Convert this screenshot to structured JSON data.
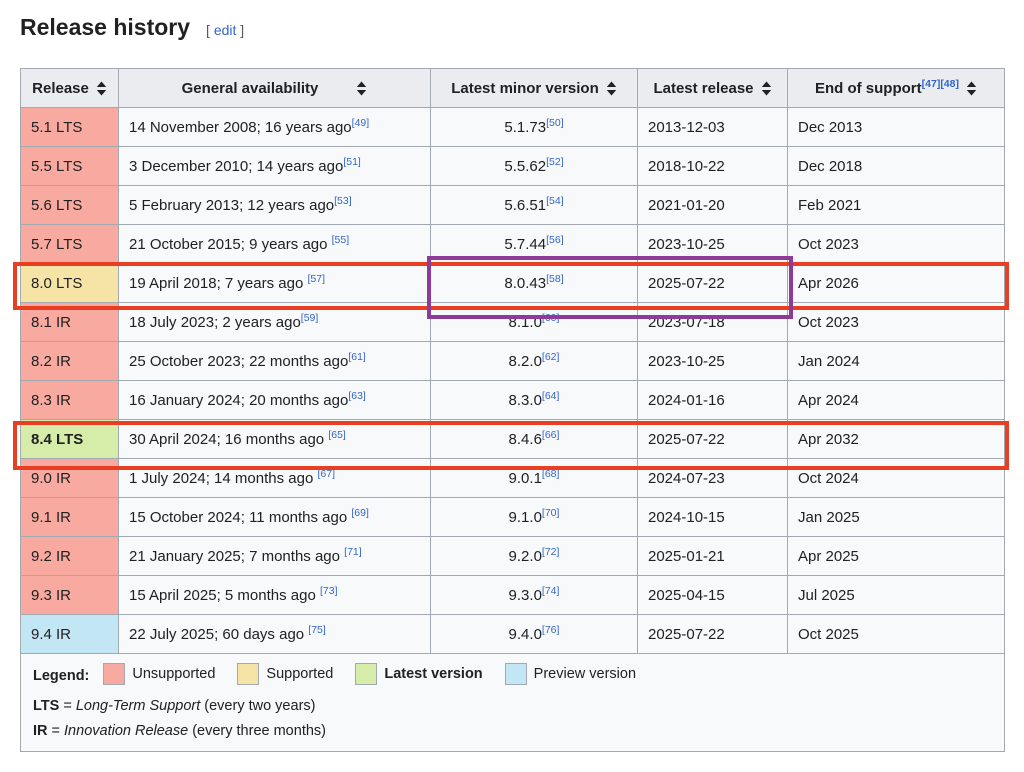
{
  "page": {
    "title": "Release history",
    "edit": {
      "open": "[ ",
      "label": "edit",
      "close": " ]"
    }
  },
  "table": {
    "headers": [
      {
        "label": "Release"
      },
      {
        "label": "General availability"
      },
      {
        "label": "Latest minor version"
      },
      {
        "label": "Latest release"
      },
      {
        "label": "End of support",
        "refs": "[47][48]"
      }
    ],
    "status_colors": {
      "unsupported": "#f8a9a0",
      "supported": "#f6e3a6",
      "latest": "#d5eda8",
      "preview": "#c2e6f4"
    },
    "rows": [
      {
        "release": "5.1 LTS",
        "status": "unsupported",
        "ga": "14 November 2008; 16 years ago",
        "ga_ref": "[49]",
        "minor": "5.1.73",
        "minor_ref": "[50]",
        "latest_release": "2013-12-03",
        "eos": "Dec 2013"
      },
      {
        "release": "5.5 LTS",
        "status": "unsupported",
        "ga": "3 December 2010; 14 years ago",
        "ga_ref": "[51]",
        "minor": "5.5.62",
        "minor_ref": "[52]",
        "latest_release": "2018-10-22",
        "eos": "Dec 2018"
      },
      {
        "release": "5.6 LTS",
        "status": "unsupported",
        "ga": "5 February 2013; 12 years ago",
        "ga_ref": "[53]",
        "minor": "5.6.51",
        "minor_ref": "[54]",
        "latest_release": "2021-01-20",
        "eos": "Feb 2021"
      },
      {
        "release": "5.7 LTS",
        "status": "unsupported",
        "ga": "21 October 2015; 9 years ago ",
        "ga_ref": "[55]",
        "minor": "5.7.44",
        "minor_ref": "[56]",
        "latest_release": "2023-10-25",
        "eos": "Oct 2023"
      },
      {
        "release": "8.0 LTS",
        "status": "supported",
        "ga": "19 April 2018; 7 years ago ",
        "ga_ref": "[57]",
        "minor": "8.0.43",
        "minor_ref": "[58]",
        "latest_release": "2025-07-22",
        "eos": "Apr 2026"
      },
      {
        "release": "8.1 IR",
        "status": "unsupported",
        "ga": "18 July 2023; 2 years ago",
        "ga_ref": "[59]",
        "minor": "8.1.0",
        "minor_ref": "[60]",
        "latest_release": "2023-07-18",
        "eos": "Oct 2023"
      },
      {
        "release": "8.2 IR",
        "status": "unsupported",
        "ga": "25 October 2023; 22 months ago",
        "ga_ref": "[61]",
        "minor": "8.2.0",
        "minor_ref": "[62]",
        "latest_release": "2023-10-25",
        "eos": "Jan 2024"
      },
      {
        "release": "8.3 IR",
        "status": "unsupported",
        "ga": "16 January 2024; 20 months ago",
        "ga_ref": "[63]",
        "minor": "8.3.0",
        "minor_ref": "[64]",
        "latest_release": "2024-01-16",
        "eos": "Apr 2024"
      },
      {
        "release": "8.4 LTS",
        "status": "latest",
        "bold": true,
        "ga": "30 April 2024; 16 months ago ",
        "ga_ref": "[65]",
        "minor": "8.4.6",
        "minor_ref": "[66]",
        "latest_release": "2025-07-22",
        "eos": "Apr 2032"
      },
      {
        "release": "9.0 IR",
        "status": "unsupported",
        "ga": "1 July 2024; 14 months ago ",
        "ga_ref": "[67]",
        "minor": "9.0.1",
        "minor_ref": "[68]",
        "latest_release": "2024-07-23",
        "eos": "Oct 2024"
      },
      {
        "release": "9.1 IR",
        "status": "unsupported",
        "ga": "15 October 2024; 11 months ago ",
        "ga_ref": "[69]",
        "minor": "9.1.0",
        "minor_ref": "[70]",
        "latest_release": "2024-10-15",
        "eos": "Jan 2025"
      },
      {
        "release": "9.2 IR",
        "status": "unsupported",
        "ga": "21 January 2025; 7 months ago ",
        "ga_ref": "[71]",
        "minor": "9.2.0",
        "minor_ref": "[72]",
        "latest_release": "2025-01-21",
        "eos": "Apr 2025"
      },
      {
        "release": "9.3 IR",
        "status": "unsupported",
        "ga": "15 April 2025; 5 months ago ",
        "ga_ref": "[73]",
        "minor": "9.3.0",
        "minor_ref": "[74]",
        "latest_release": "2025-04-15",
        "eos": "Jul 2025"
      },
      {
        "release": "9.4 IR",
        "status": "preview",
        "ga": "22 July 2025; 60 days ago ",
        "ga_ref": "[75]",
        "minor": "9.4.0",
        "minor_ref": "[76]",
        "latest_release": "2025-07-22",
        "eos": "Oct 2025"
      }
    ]
  },
  "legend": {
    "title": "Legend:",
    "items": [
      {
        "label": "Unsupported",
        "status": "unsupported"
      },
      {
        "label": "Supported",
        "status": "supported"
      },
      {
        "label": "Latest version",
        "status": "latest",
        "bold": true
      },
      {
        "label": "Preview version",
        "status": "preview"
      }
    ],
    "notes": [
      {
        "abbr": "LTS",
        "sep": " = ",
        "term": "Long-Term Support",
        "rest": " (every two years)"
      },
      {
        "abbr": "IR",
        "sep": " = ",
        "term": "Innovation Release",
        "rest": " (every three months)"
      }
    ]
  },
  "annotations": {
    "row_box_color": "#ea3e23",
    "cell_box_color": "#8e3a98"
  }
}
